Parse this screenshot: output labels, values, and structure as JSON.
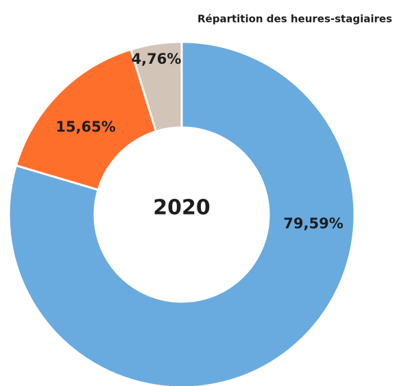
{
  "chart_data": {
    "type": "donut",
    "title": "Répartition des heures-stagiaires",
    "center_label": "2020",
    "values": [
      79.59,
      15.65,
      4.76
    ],
    "value_labels": [
      "79,59%",
      "15,65%",
      "4,76%"
    ],
    "colors": [
      "#6aabdf",
      "#ff6f2c",
      "#d3c4b8"
    ]
  }
}
